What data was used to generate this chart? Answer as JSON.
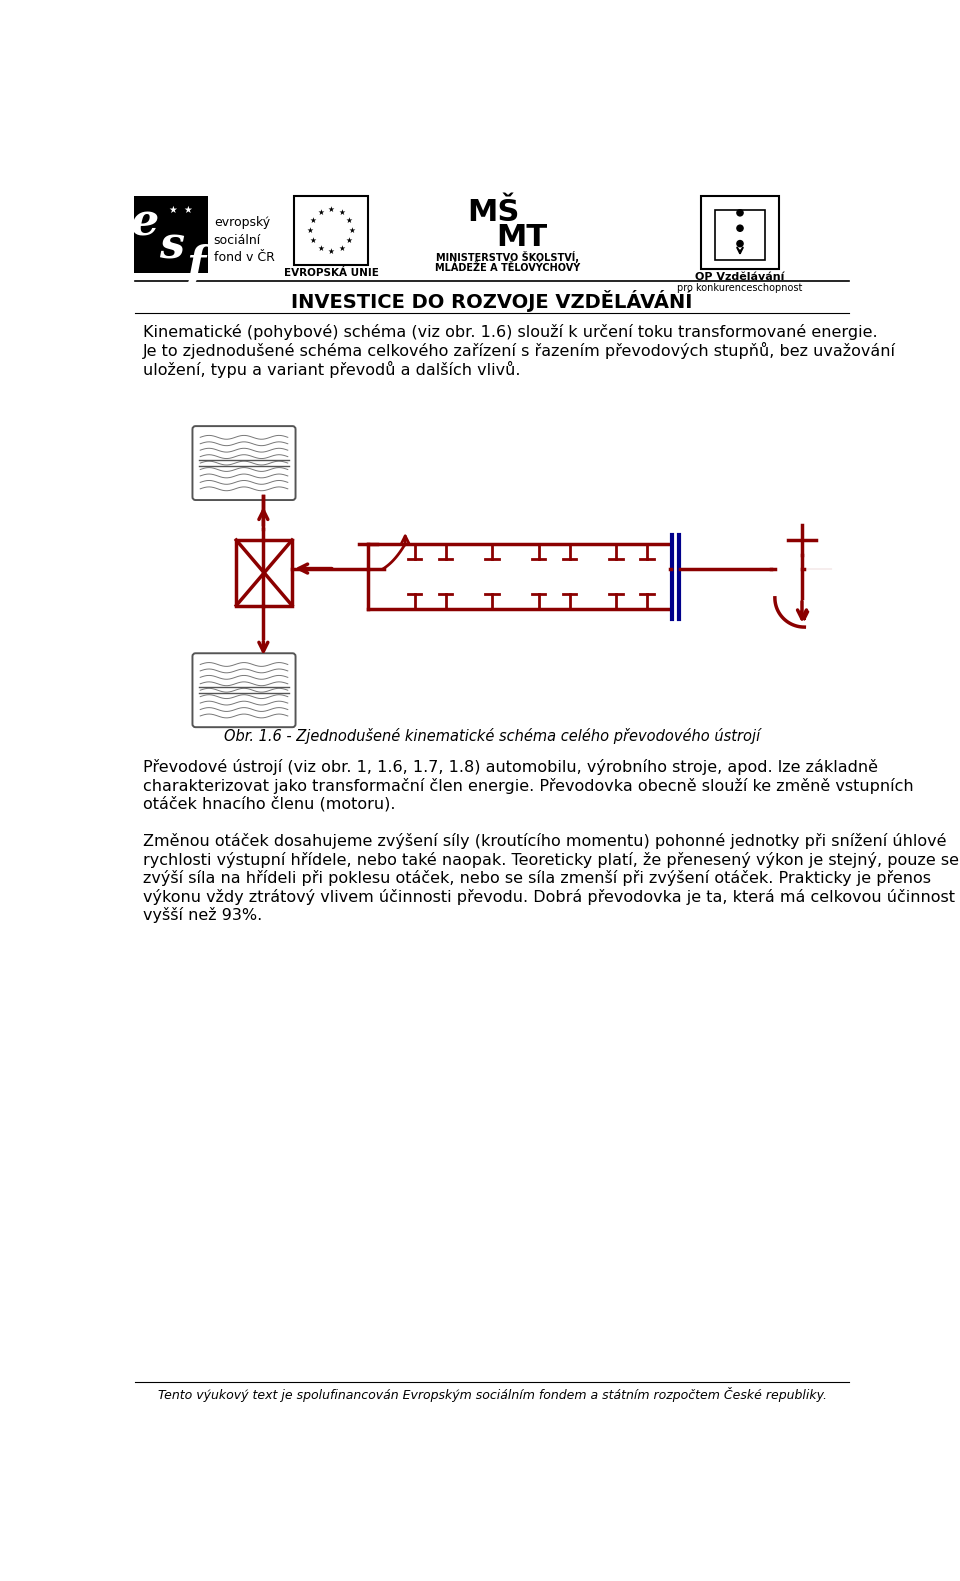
{
  "bg_color": "#ffffff",
  "text_color": "#000000",
  "diagram_color": "#8b0000",
  "blue_color": "#00008b",
  "line_width": 2.2,
  "header_line1": "INVESTICE DO ROZVOJE VZDĚLÁVÁNÍ",
  "para1_line1": "Kinematické (pohybové) schéma (viz obr. 1.6) slouží k určení toku transformované energie.",
  "para1_line2": "Je to zjednodušené schéma celkového zařízení s řazením převodových stupňů, bez uvažování",
  "para1_line3": "uložení, typu a variant převodů a dalších vlivů.",
  "caption": "Obr. 1.6 - Zjednodušené kinematické schéma celého převodového ústrojí",
  "para2_line1": "Převodové ústrojí (viz obr. 1, 1.6, 1.7, 1.8) automobilu, výrobního stroje, apod. lze základně",
  "para2_line2": "charakterizovat jako transformační člen energie. Převodovka obecně slouží ke změně vstupních",
  "para2_line3": "otáček hnacího členu (motoru).",
  "para3_line1": "Změnou otáček dosahujeme zvýšení síly (kroutícího momentu) pohonné jednotky při snížení úhlové",
  "para3_line2": "rychlosti výstupní hřídele, nebo také naopak. Teoreticky platí, že přenesený výkon je stejný, pouze se",
  "para3_line3": "zvýší síla na hřídeli při poklesu otáček, nebo se síla zmenší při zvýšení otáček. Prakticky je přenos",
  "para3_line4": "výkonu vždy ztrátový vlivem účinnosti převodu. Dobrá převodovka je ta, která má celkovou účinnost",
  "para3_line5": "vyšší než 93%.",
  "footer": "Tento výukový text je spolufinancován Evropským sociálním fondem a státním rozpočtem České republiky.",
  "esf_text1": "evropský",
  "esf_text2": "sociální",
  "esf_text3": "fond v ČR",
  "eu_text": "EVROPSKÁ UNIE",
  "msmt_text1": "MINISTERSTVO ŠKOLSTVÍ,",
  "msmt_text2": "MLÁDEŽE A TĚLOVÝCHOVY",
  "op_text1": "OP Vzdělávání",
  "op_text2": "pro konkurenceschopnost"
}
